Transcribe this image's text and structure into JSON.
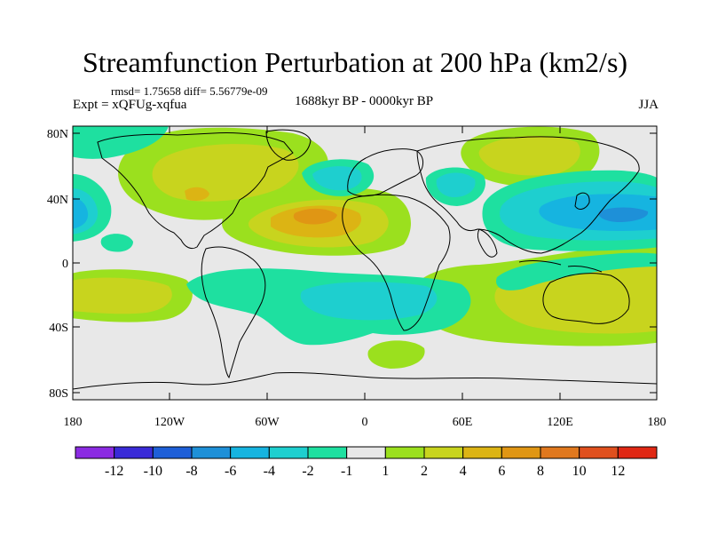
{
  "title": "Streamfunction Perturbation at 200 hPa (km2/s)",
  "stats": "rmsd= 1.75658 diff= 5.56779e-09",
  "experiment": "Expt = xQFUg-xqfua",
  "period": "1688kyr BP - 0000kyr BP",
  "season": "JJA",
  "axes": {
    "lat_ticks": [
      "80N",
      "40N",
      "0",
      "40S",
      "80S"
    ],
    "lon_ticks": [
      "180",
      "120W",
      "60W",
      "0",
      "60E",
      "120E",
      "180"
    ]
  },
  "colorbar": {
    "colors": [
      "#8b2be2",
      "#3a2bd8",
      "#1e5fd8",
      "#1e90d8",
      "#16b4e0",
      "#1ecfcf",
      "#1ee0a0",
      "#e8e8e8",
      "#9be01e",
      "#c8d41e",
      "#dcb414",
      "#e09614",
      "#e0781e",
      "#e0501e",
      "#e02814"
    ],
    "labels": [
      "-12",
      "-10",
      "-8",
      "-6",
      "-4",
      "-2",
      "-1",
      "1",
      "2",
      "4",
      "6",
      "8",
      "10",
      "12"
    ]
  },
  "field_colors": {
    "background": "#e8e8e8",
    "neg1": "#1ee0a0",
    "neg2": "#1ecfcf",
    "neg3": "#16b4e0",
    "neg4": "#1e90d8",
    "pos1": "#9be01e",
    "pos2": "#c8d41e",
    "pos3": "#dcb414",
    "pos4": "#e09614"
  }
}
